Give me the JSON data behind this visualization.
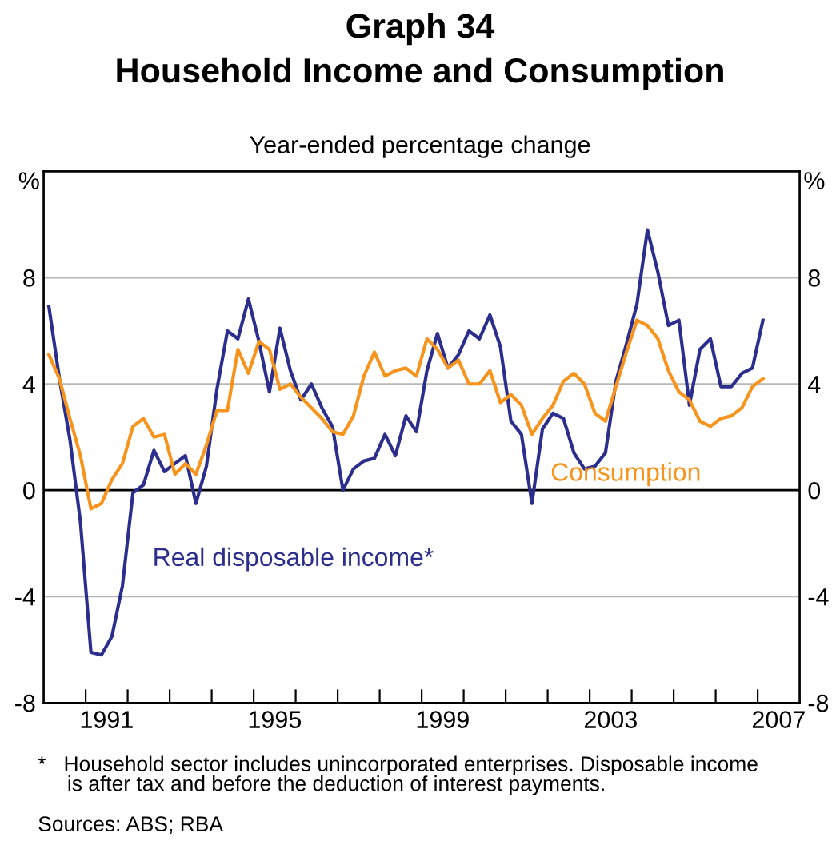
{
  "chart_data": {
    "type": "line",
    "title": "Graph 34\nHousehold Income and Consumption",
    "subtitle": "Year-ended percentage change",
    "ylabel": "%",
    "y2label": "%",
    "x": [
      1990.125,
      1990.375,
      1990.625,
      1990.875,
      1991.125,
      1991.375,
      1991.625,
      1991.875,
      1992.125,
      1992.375,
      1992.625,
      1992.875,
      1993.125,
      1993.375,
      1993.625,
      1993.875,
      1994.125,
      1994.375,
      1994.625,
      1994.875,
      1995.125,
      1995.375,
      1995.625,
      1995.875,
      1996.125,
      1996.375,
      1996.625,
      1996.875,
      1997.125,
      1997.375,
      1997.625,
      1997.875,
      1998.125,
      1998.375,
      1998.625,
      1998.875,
      1999.125,
      1999.375,
      1999.625,
      1999.875,
      2000.125,
      2000.375,
      2000.625,
      2000.875,
      2001.125,
      2001.375,
      2001.625,
      2001.875,
      2002.125,
      2002.375,
      2002.625,
      2002.875,
      2003.125,
      2003.375,
      2003.625,
      2003.875,
      2004.125,
      2004.375,
      2004.625,
      2004.875,
      2005.125,
      2005.375,
      2005.625,
      2005.875,
      2006.125,
      2006.375,
      2006.625,
      2006.875,
      2007.125
    ],
    "series": [
      {
        "name": "Real disposable income*",
        "color": "#2b2e8c",
        "values": [
          6.9,
          4.2,
          1.9,
          -1.2,
          -6.1,
          -6.2,
          -5.5,
          -3.6,
          -0.1,
          0.2,
          1.5,
          0.7,
          1.0,
          1.3,
          -0.5,
          0.9,
          3.8,
          6.0,
          5.7,
          7.2,
          5.6,
          3.7,
          6.1,
          4.5,
          3.4,
          4.0,
          3.1,
          2.4,
          0.0,
          0.8,
          1.1,
          1.2,
          2.1,
          1.3,
          2.8,
          2.2,
          4.5,
          5.9,
          4.6,
          5.1,
          6.0,
          5.7,
          6.6,
          5.4,
          2.6,
          2.1,
          -0.5,
          2.3,
          2.9,
          2.7,
          1.4,
          0.8,
          0.9,
          1.4,
          4.1,
          5.5,
          7.0,
          9.8,
          8.2,
          6.2,
          6.4,
          3.2,
          5.3,
          5.7,
          3.9,
          3.9,
          4.4,
          4.6,
          6.4
        ]
      },
      {
        "name": "Consumption",
        "color": "#f7941d",
        "values": [
          5.1,
          4.2,
          2.7,
          1.3,
          -0.7,
          -0.5,
          0.4,
          1.0,
          2.4,
          2.7,
          2.0,
          2.1,
          0.6,
          1.0,
          0.6,
          1.7,
          3.0,
          3.0,
          5.3,
          4.4,
          5.6,
          5.3,
          3.8,
          4.0,
          3.5,
          3.1,
          2.7,
          2.2,
          2.1,
          2.8,
          4.3,
          5.2,
          4.3,
          4.5,
          4.6,
          4.3,
          5.7,
          5.3,
          4.6,
          4.9,
          4.0,
          4.0,
          4.5,
          3.3,
          3.6,
          3.2,
          2.1,
          2.7,
          3.2,
          4.1,
          4.4,
          4.0,
          2.9,
          2.6,
          3.9,
          5.2,
          6.4,
          6.2,
          5.7,
          4.5,
          3.7,
          3.4,
          2.6,
          2.4,
          2.7,
          2.8,
          3.1,
          3.9,
          4.2
        ]
      }
    ],
    "xlim": [
      1990,
      2008
    ],
    "xticks": [
      {
        "value": 1991,
        "label": null
      },
      {
        "value": 1991.5,
        "label": "1991"
      },
      {
        "value": 1992,
        "label": null
      },
      {
        "value": 1993,
        "label": null
      },
      {
        "value": 1994,
        "label": null
      },
      {
        "value": 1995,
        "label": null
      },
      {
        "value": 1995.5,
        "label": "1995"
      },
      {
        "value": 1996,
        "label": null
      },
      {
        "value": 1997,
        "label": null
      },
      {
        "value": 1998,
        "label": null
      },
      {
        "value": 1999,
        "label": null
      },
      {
        "value": 1999.5,
        "label": "1999"
      },
      {
        "value": 2000,
        "label": null
      },
      {
        "value": 2001,
        "label": null
      },
      {
        "value": 2002,
        "label": null
      },
      {
        "value": 2003,
        "label": null
      },
      {
        "value": 2003.5,
        "label": "2003"
      },
      {
        "value": 2004,
        "label": null
      },
      {
        "value": 2005,
        "label": null
      },
      {
        "value": 2006,
        "label": null
      },
      {
        "value": 2007,
        "label": null
      },
      {
        "value": 2007.5,
        "label": "2007"
      }
    ],
    "ylim": [
      -8,
      12
    ],
    "yticks": [
      -8,
      -4,
      0,
      4,
      8
    ],
    "y2lim": [
      -8,
      12
    ],
    "y2ticks": [
      -8,
      -4,
      0,
      4,
      8
    ],
    "grid": "y",
    "ref_lines": [
      {
        "axis": "y",
        "value": 0,
        "color": "#000000"
      }
    ],
    "annotations": [
      "*   Household sector includes unincorporated enterprises. Disposable income\n     is after tax and before the deduction of interest payments.",
      "Sources: ABS; RBA"
    ]
  }
}
